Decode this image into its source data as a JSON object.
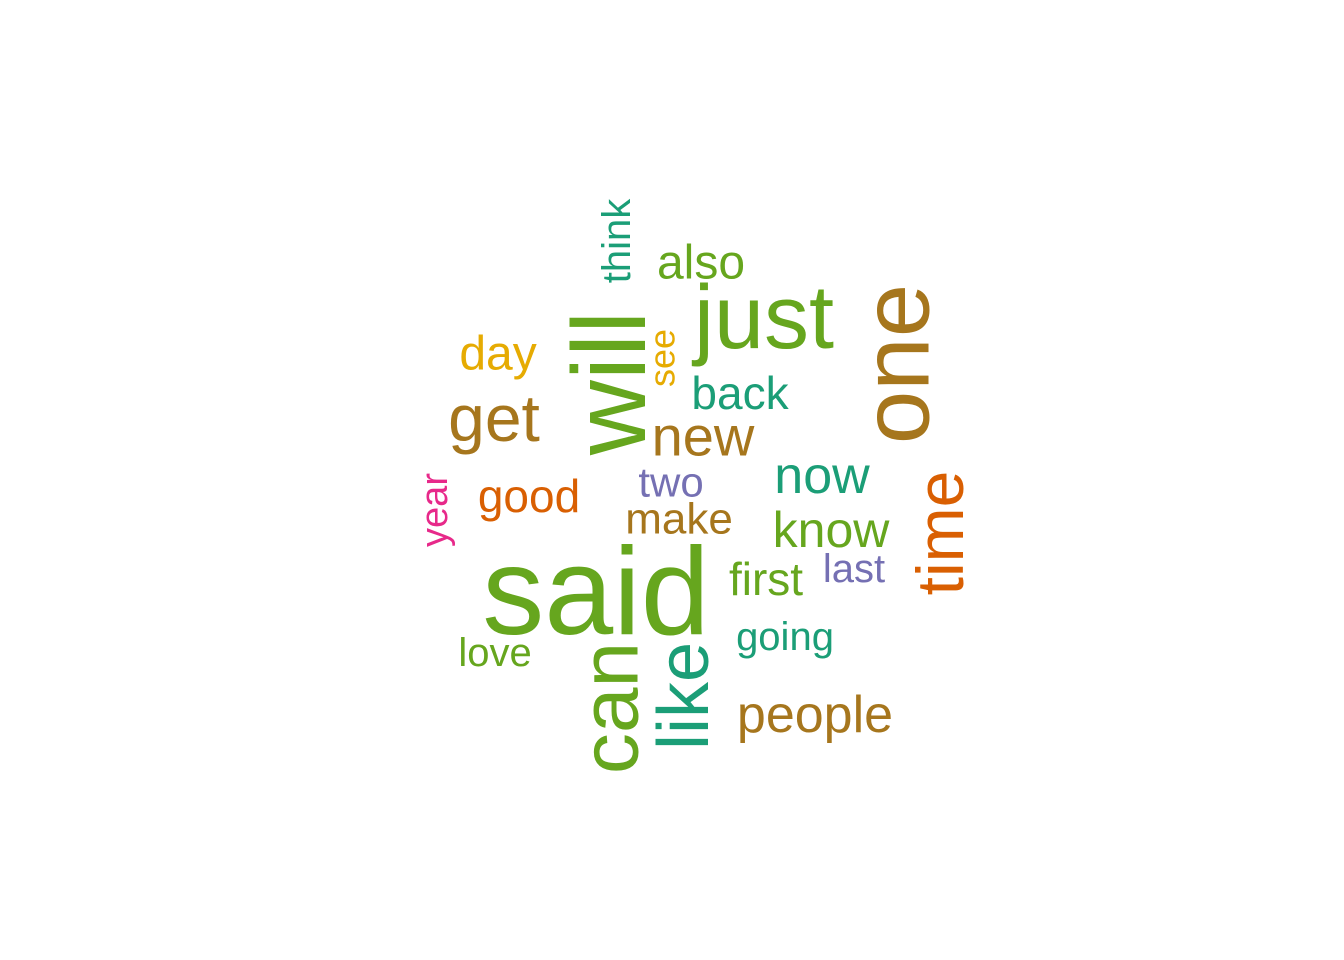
{
  "colors": {
    "background": "#ffffff",
    "green": "#66a61e",
    "brown": "#a6761d",
    "teal": "#1b9e77",
    "orange": "#d95f02",
    "yellow": "#e6ab02",
    "purple": "#7570b3",
    "pink": "#e7298a"
  },
  "words": [
    {
      "text": "said",
      "color": "green"
    },
    {
      "text": "will",
      "color": "green"
    },
    {
      "text": "one",
      "color": "brown"
    },
    {
      "text": "just",
      "color": "green"
    },
    {
      "text": "can",
      "color": "green"
    },
    {
      "text": "like",
      "color": "teal"
    },
    {
      "text": "time",
      "color": "orange"
    },
    {
      "text": "get",
      "color": "brown"
    },
    {
      "text": "new",
      "color": "brown"
    },
    {
      "text": "now",
      "color": "teal"
    },
    {
      "text": "people",
      "color": "brown"
    },
    {
      "text": "know",
      "color": "green"
    },
    {
      "text": "also",
      "color": "green"
    },
    {
      "text": "day",
      "color": "yellow"
    },
    {
      "text": "back",
      "color": "teal"
    },
    {
      "text": "good",
      "color": "orange"
    },
    {
      "text": "first",
      "color": "green"
    },
    {
      "text": "make",
      "color": "brown"
    },
    {
      "text": "two",
      "color": "purple"
    },
    {
      "text": "think",
      "color": "teal"
    },
    {
      "text": "going",
      "color": "teal"
    },
    {
      "text": "last",
      "color": "purple"
    },
    {
      "text": "love",
      "color": "green"
    },
    {
      "text": "year",
      "color": "pink"
    },
    {
      "text": "see",
      "color": "yellow"
    }
  ]
}
